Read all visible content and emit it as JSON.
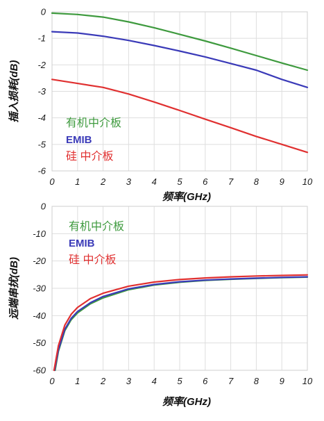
{
  "chart_data": [
    {
      "type": "line",
      "xlabel": "频率(GHz)",
      "ylabel": "插入损耗(dB)",
      "xlim": [
        0,
        10
      ],
      "ylim": [
        -6,
        0
      ],
      "xticks": [
        "0",
        "1",
        "2",
        "3",
        "4",
        "5",
        "6",
        "7",
        "8",
        "9",
        "10"
      ],
      "yticks": [
        "0",
        "-1",
        "-2",
        "-3",
        "-4",
        "-5",
        "-6"
      ],
      "grid": true,
      "legend_position": "left",
      "series": [
        {
          "name": "有机中介板",
          "color": "#3e9a3e",
          "x": [
            0,
            1,
            2,
            3,
            4,
            5,
            6,
            7,
            8,
            9,
            10
          ],
          "y": [
            -0.05,
            -0.1,
            -0.2,
            -0.38,
            -0.6,
            -0.85,
            -1.1,
            -1.37,
            -1.65,
            -1.93,
            -2.2
          ]
        },
        {
          "name": "EMIB",
          "color": "#3a3ab8",
          "x": [
            0,
            1,
            2,
            3,
            4,
            5,
            6,
            7,
            8,
            9,
            10
          ],
          "y": [
            -0.75,
            -0.8,
            -0.92,
            -1.08,
            -1.27,
            -1.48,
            -1.7,
            -1.95,
            -2.2,
            -2.55,
            -2.85
          ]
        },
        {
          "name": "硅 中介板",
          "color": "#e03030",
          "x": [
            0,
            1,
            2,
            3,
            4,
            5,
            6,
            7,
            8,
            9,
            10
          ],
          "y": [
            -2.55,
            -2.7,
            -2.85,
            -3.1,
            -3.4,
            -3.72,
            -4.05,
            -4.37,
            -4.7,
            -5.0,
            -5.3
          ]
        }
      ]
    },
    {
      "type": "line",
      "xlabel": "频率(GHz)",
      "ylabel": "远端串扰(dB)",
      "xlim": [
        0,
        10
      ],
      "ylim": [
        -60,
        0
      ],
      "xticks": [
        "0",
        "1",
        "2",
        "3",
        "4",
        "5",
        "6",
        "7",
        "8",
        "9",
        "10"
      ],
      "yticks": [
        "0",
        "-10",
        "-20",
        "-30",
        "-40",
        "-50",
        "-60"
      ],
      "grid": true,
      "legend_position": "top-left",
      "series": [
        {
          "name": "有机中介板",
          "color": "#3e9a3e",
          "x": [
            0.12,
            0.25,
            0.5,
            0.75,
            1,
            1.5,
            2,
            3,
            4,
            5,
            6,
            7,
            8,
            9,
            10
          ],
          "y": [
            -60,
            -53,
            -45.5,
            -41.5,
            -39,
            -35.7,
            -33.5,
            -30.5,
            -28.8,
            -27.8,
            -27.1,
            -26.7,
            -26.4,
            -26.1,
            -25.9
          ]
        },
        {
          "name": "EMIB",
          "color": "#3a3ab8",
          "x": [
            0.1,
            0.25,
            0.5,
            0.75,
            1,
            1.5,
            2,
            3,
            4,
            5,
            6,
            7,
            8,
            9,
            10
          ],
          "y": [
            -60,
            -52.5,
            -45,
            -41,
            -38.5,
            -35.3,
            -33,
            -30.2,
            -28.6,
            -27.6,
            -27,
            -26.6,
            -26.3,
            -26,
            -25.8
          ]
        },
        {
          "name": "硅 中介板",
          "color": "#e03030",
          "x": [
            0.08,
            0.25,
            0.5,
            0.75,
            1,
            1.5,
            2,
            3,
            4,
            5,
            6,
            7,
            8,
            9,
            10
          ],
          "y": [
            -60,
            -51,
            -43.5,
            -39.5,
            -37,
            -33.8,
            -31.8,
            -29.2,
            -27.7,
            -26.8,
            -26.2,
            -25.8,
            -25.5,
            -25.3,
            -25.1
          ]
        }
      ]
    }
  ]
}
